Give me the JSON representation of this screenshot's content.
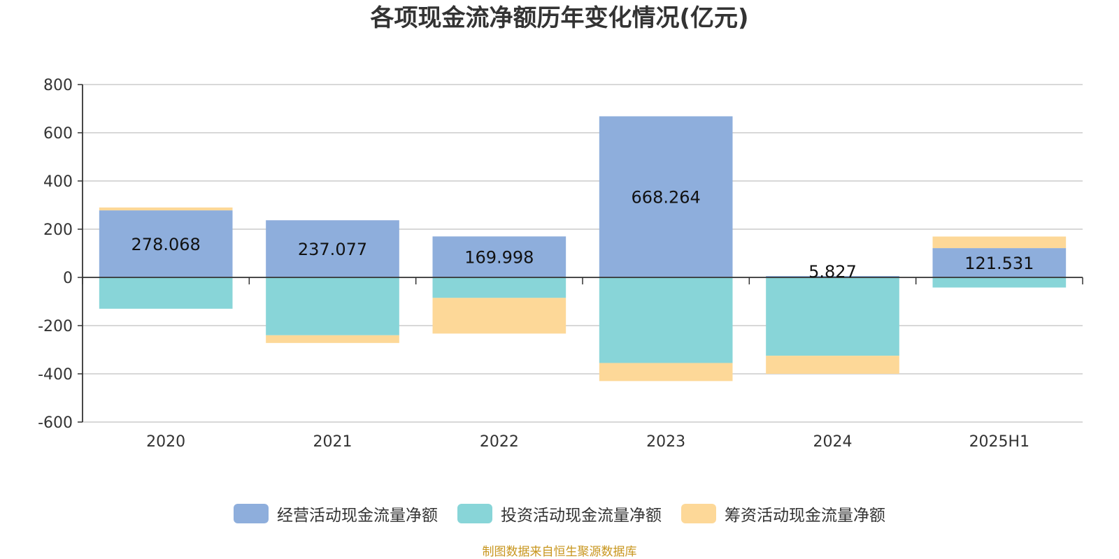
{
  "chart_data": {
    "type": "bar",
    "stacked": true,
    "title": "各项现金流净额历年变化情况(亿元)",
    "categories": [
      "2020",
      "2021",
      "2022",
      "2023",
      "2024",
      "2025H1"
    ],
    "ylim": [
      -600,
      800
    ],
    "yticks": [
      "800",
      "600",
      "400",
      "200",
      "0",
      "-200",
      "-400",
      "-600"
    ],
    "ytick_values": [
      800,
      600,
      400,
      200,
      0,
      -200,
      -400,
      -600
    ],
    "grid": true,
    "legend_position": "bottom",
    "series": [
      {
        "name": "经营活动现金流量净额",
        "color": "#8eaedc",
        "values": [
          278.068,
          237.077,
          169.998,
          668.264,
          5.827,
          121.531
        ],
        "labels": [
          "278.068",
          "237.077",
          "169.998",
          "668.264",
          "5.827",
          "121.531"
        ]
      },
      {
        "name": "投资活动现金流量净额",
        "color": "#88d5d8",
        "values": [
          -130,
          -240,
          -85,
          -355,
          -325,
          -42
        ]
      },
      {
        "name": "筹资活动现金流量净额",
        "color": "#fdd898",
        "values": [
          12,
          -32,
          -148,
          -75,
          -75,
          48
        ]
      }
    ]
  },
  "source_note": "制图数据来自恒生聚源数据库"
}
